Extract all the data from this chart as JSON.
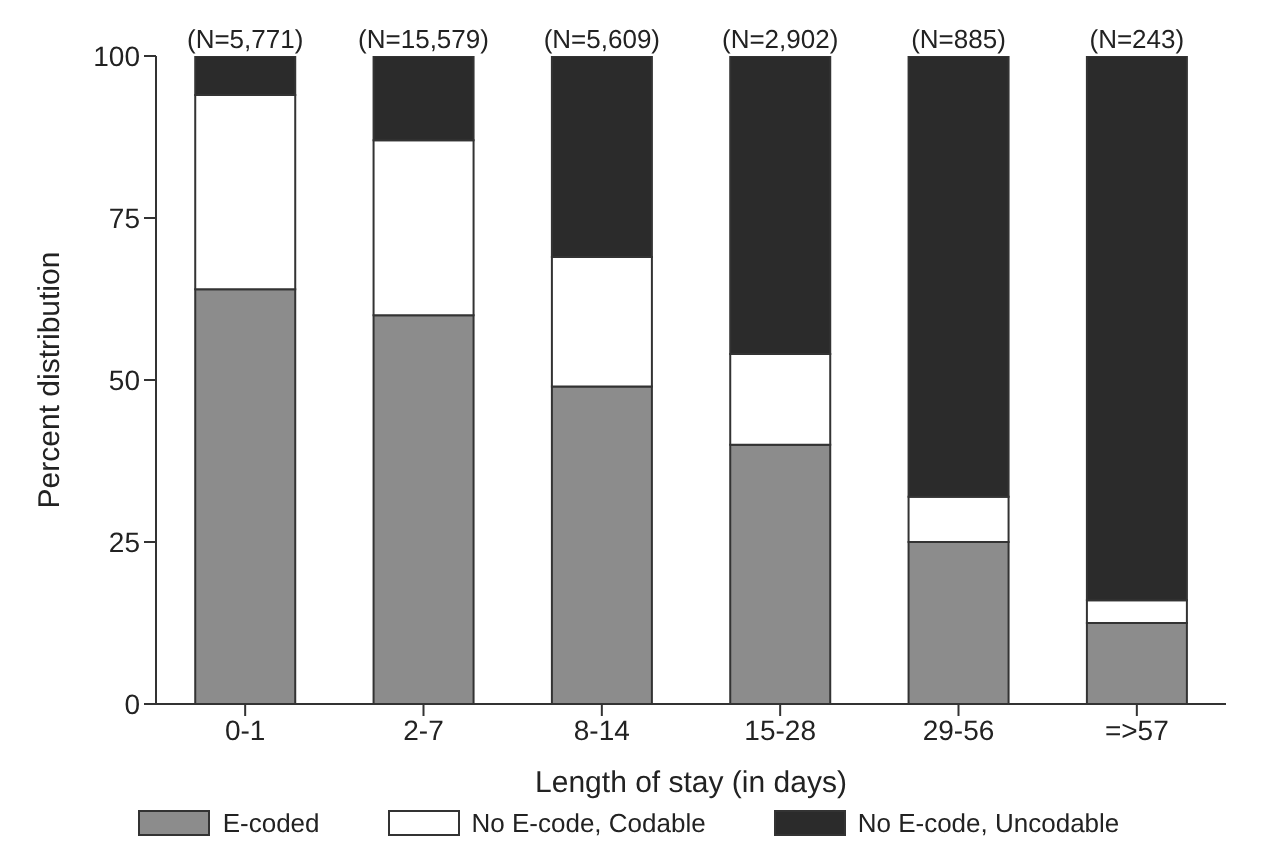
{
  "chart_data": {
    "type": "bar",
    "stacked": true,
    "xlabel": "Length of stay (in days)",
    "ylabel": "Percent distribution",
    "categories": [
      "0-1",
      "2-7",
      "8-14",
      "15-28",
      "29-56",
      "=>57"
    ],
    "series": [
      {
        "name": "E-coded",
        "color": "#8c8c8c",
        "values": [
          64,
          60,
          49,
          40,
          25,
          12.5
        ]
      },
      {
        "name": "No E-code, Codable",
        "color": "#ffffff",
        "values": [
          30,
          27,
          20,
          14,
          7,
          3.5
        ]
      },
      {
        "name": "No E-code, Uncodable",
        "color": "#2b2b2b",
        "values": [
          6,
          13,
          31,
          46,
          68,
          84
        ]
      }
    ],
    "ylim": [
      0,
      100
    ],
    "yticks": [
      0,
      25,
      50,
      75,
      100
    ],
    "grid": false,
    "legend": "bottom",
    "annotations": [
      {
        "text": "(N=5,771)",
        "x": "0-1",
        "y": 100
      },
      {
        "text": "(N=15,579)",
        "x": "2-7",
        "y": 100
      },
      {
        "text": "(N=5,609)",
        "x": "8-14",
        "y": 100
      },
      {
        "text": "(N=2,902)",
        "x": "15-28",
        "y": 100
      },
      {
        "text": "(N=885)",
        "x": "29-56",
        "y": 100
      },
      {
        "text": "(N=243)",
        "x": "=>57",
        "y": 100
      }
    ]
  }
}
